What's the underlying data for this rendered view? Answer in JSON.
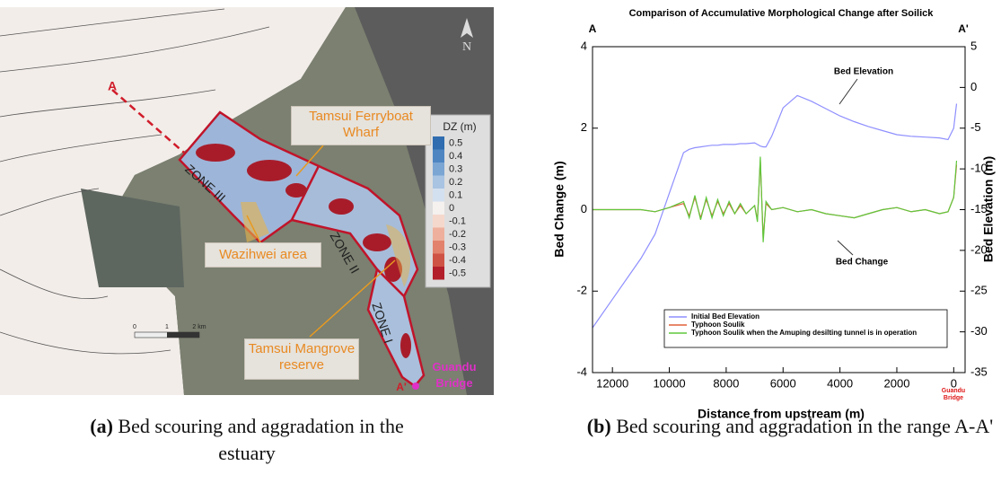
{
  "figure_a": {
    "north": "N",
    "section_start": "A",
    "section_end": "A'",
    "ferry": "Tamsui Ferryboat Wharf",
    "wazihwei": "Wazihwei area",
    "mangrove": "Tamsui Mangrove reserve",
    "zone3": "ZONE III",
    "zone2": "ZONE II",
    "zone1": "ZONE I",
    "bridge": "Guandu Bridge",
    "scale_ticks": [
      0,
      1,
      {
        "value": 2,
        "label": "2 km"
      }
    ],
    "colorbar": {
      "title": "DZ (m)",
      "ticks": [
        0.5,
        0.4,
        0.3,
        0.2,
        0.1,
        0,
        -0.1,
        -0.2,
        -0.3,
        -0.4,
        -0.5
      ],
      "colors": [
        "#2f6db0",
        "#4f86c2",
        "#7ba5d3",
        "#a9c4e2",
        "#d3e0ef",
        "#f4f1ef",
        "#f5d8cc",
        "#eeb09c",
        "#e2826c",
        "#cf5344",
        "#b21f2a"
      ]
    },
    "caption_label": "(a)",
    "caption": "Bed scouring and aggradation in the estuary"
  },
  "chart_data": {
    "type": "line",
    "title": "Comparison of Accumulative Morphological Change after Soilick",
    "section_start": "A",
    "section_end": "A'",
    "x_label": "Distance from upstream (m)",
    "y_label": "Bed Change (m)",
    "y2_label": "Bed Elevation (m)",
    "x_note": "Guandu Bridge",
    "annotations": [
      "Bed Elevation",
      "Bed Change"
    ],
    "xlim": [
      12700,
      -400
    ],
    "xticks": [
      12000,
      10000,
      8000,
      6000,
      4000,
      2000,
      0
    ],
    "ylim": [
      -4,
      4
    ],
    "yticks": [
      -4,
      -2,
      0,
      2,
      4
    ],
    "y2lim": [
      -35,
      5
    ],
    "y2ticks": [
      5,
      0,
      -5,
      -10,
      -15,
      -20,
      -25,
      -30,
      -35
    ],
    "x": [
      12700,
      12000,
      11000,
      10500,
      10000,
      9500,
      9300,
      9100,
      8900,
      8700,
      8500,
      8300,
      8100,
      7900,
      7700,
      7500,
      7300,
      7000,
      6900,
      6800,
      6700,
      6600,
      6400,
      6000,
      5500,
      5000,
      4500,
      4000,
      3500,
      3000,
      2500,
      2000,
      1500,
      1000,
      500,
      200,
      0,
      -100
    ],
    "series": [
      {
        "name": "Initial Bed Elevation",
        "color": "#8f8fff",
        "axis": "y2",
        "values": [
          -29.5,
          -26,
          -21,
          -18,
          -13,
          -8,
          -7.6,
          -7.4,
          -7.3,
          -7.2,
          -7.1,
          -7.1,
          -7,
          -7,
          -7,
          -6.9,
          -6.9,
          -6.8,
          -7,
          -7.2,
          -7.3,
          -7.3,
          -6,
          -2.5,
          -1,
          -1.7,
          -2.6,
          -3.5,
          -4.2,
          -4.8,
          -5.3,
          -5.8,
          -6,
          -6.1,
          -6.2,
          -6.4,
          -5,
          -2
        ]
      },
      {
        "name": "Typhoon Soulik",
        "color": "#e0603a",
        "values": [
          0,
          0,
          0,
          -0.05,
          0.05,
          0.15,
          -0.15,
          0.3,
          -0.2,
          0.25,
          -0.15,
          0.2,
          -0.1,
          0.15,
          -0.1,
          0.1,
          -0.1,
          0.1,
          -0.25,
          1.2,
          -0.7,
          0.15,
          0,
          0.05,
          -0.05,
          0,
          -0.1,
          -0.15,
          -0.2,
          -0.1,
          0,
          0.05,
          -0.05,
          0,
          -0.1,
          -0.05,
          0.3,
          1.1
        ]
      },
      {
        "name": "Typhoon Soulik when the Amuping desilting tunnel is in operation",
        "color": "#5fc83c",
        "values": [
          0,
          0,
          0,
          -0.05,
          0.05,
          0.2,
          -0.2,
          0.35,
          -0.25,
          0.3,
          -0.2,
          0.25,
          -0.15,
          0.2,
          -0.1,
          0.15,
          -0.1,
          0.1,
          -0.3,
          1.3,
          -0.8,
          0.2,
          0,
          0.05,
          -0.05,
          0,
          -0.1,
          -0.15,
          -0.2,
          -0.1,
          0,
          0.05,
          -0.05,
          0,
          -0.1,
          -0.05,
          0.3,
          1.2
        ]
      }
    ],
    "caption_label": "(b)",
    "caption": "Bed scouring and aggradation in the range A-A'"
  }
}
